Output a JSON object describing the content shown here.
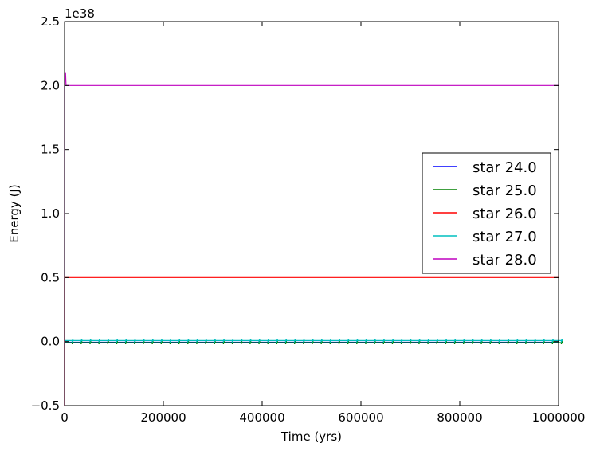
{
  "chart_data": {
    "type": "line",
    "xlabel": "Time (yrs)",
    "ylabel": "Energy (J)",
    "offset_text": "1e38",
    "xlim": [
      0,
      1000000
    ],
    "ylim": [
      -0.5,
      2.5
    ],
    "y_scale_exponent": 38,
    "x_ticks": [
      0,
      200000,
      400000,
      600000,
      800000,
      1000000
    ],
    "x_tick_labels": [
      "0",
      "200000",
      "400000",
      "600000",
      "800000",
      "1000000"
    ],
    "y_ticks": [
      -0.5,
      0.0,
      0.5,
      1.0,
      1.5,
      2.0,
      2.5
    ],
    "y_tick_labels": [
      "−0.5",
      "0.0",
      "0.5",
      "1.0",
      "1.5",
      "2.0",
      "2.5"
    ],
    "grid": false,
    "legend_position": "center-right",
    "series": [
      {
        "name": "star 24.0",
        "color": "#0000ff",
        "level": -0.005,
        "spike": null,
        "sawtooth": null
      },
      {
        "name": "star 25.0",
        "color": "#008000",
        "level": -0.008,
        "spike": null,
        "sawtooth": {
          "period": 18000,
          "low": -0.02,
          "high": 0.005
        }
      },
      {
        "name": "star 26.0",
        "color": "#ff0000",
        "level": 0.5,
        "spike": {
          "min": -0.5,
          "max": 0.5
        },
        "sawtooth": null
      },
      {
        "name": "star 27.0",
        "color": "#00bfbf",
        "level": 0.008,
        "spike": null,
        "sawtooth": {
          "period": 18000,
          "low": 0.0,
          "high": 0.02
        }
      },
      {
        "name": "star 28.0",
        "color": "#bf00bf",
        "level": 2.0,
        "spike": {
          "min": -0.5,
          "max": 2.1
        },
        "sawtooth": null
      }
    ]
  }
}
